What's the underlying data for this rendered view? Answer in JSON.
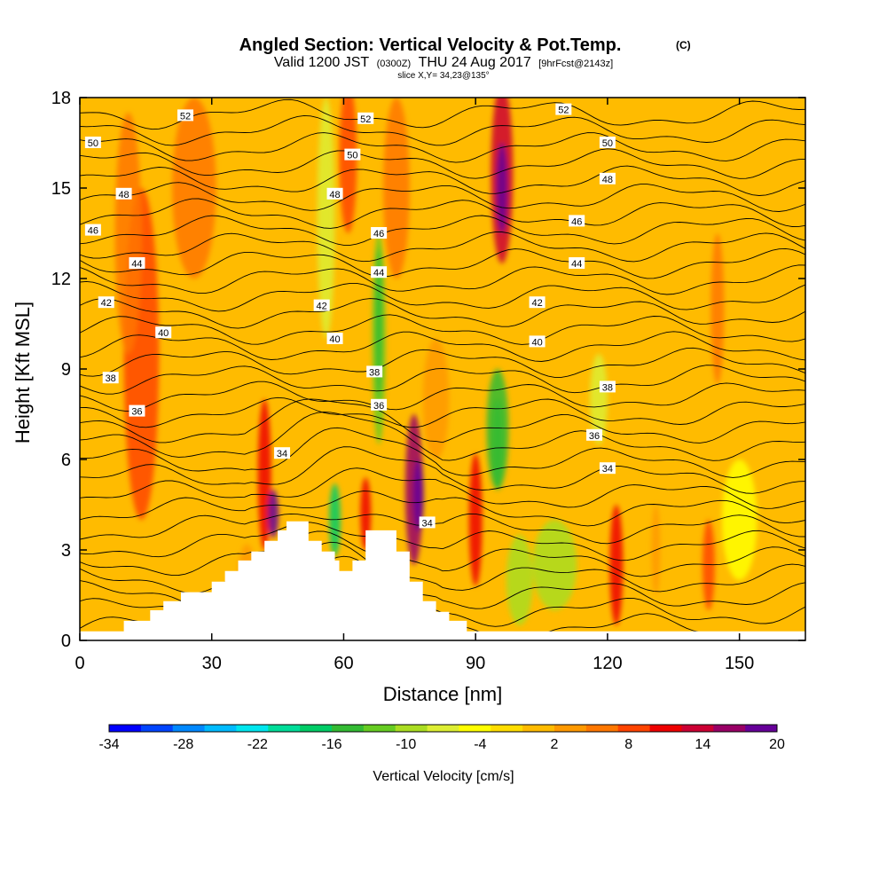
{
  "title": {
    "main": "Angled Section: Vertical Velocity & Pot.Temp.",
    "main_suffix": "(C)",
    "valid_prefix": "Valid 1200 JST",
    "valid_utc": "(0300Z)",
    "valid_date": "THU 24 Aug 2017",
    "forecast": "[9hrFcst@2143z]",
    "slice": "slice X,Y= 34,23@135°"
  },
  "chart_data": {
    "type": "heatmap",
    "xlabel": "Distance [nm]",
    "ylabel": "Height [Kft MSL]",
    "xlim": [
      0,
      165
    ],
    "ylim": [
      0,
      18
    ],
    "x_ticks": [
      "0",
      "30",
      "60",
      "90",
      "120",
      "150"
    ],
    "y_ticks": [
      "0",
      "3",
      "6",
      "9",
      "12",
      "15",
      "18"
    ],
    "x_tick_values": [
      0,
      30,
      60,
      90,
      120,
      150
    ],
    "y_tick_values": [
      0,
      3,
      6,
      9,
      12,
      15,
      18
    ],
    "colorbar": {
      "title": "Vertical Velocity [cm/s]",
      "range": [
        -34,
        20
      ],
      "tick_labels": [
        "-34",
        "-28",
        "-22",
        "-16",
        "-10",
        "-4",
        "2",
        "8",
        "14",
        "20"
      ],
      "colors": [
        "#0000ff",
        "#0044ff",
        "#0088ff",
        "#00bbff",
        "#00e6ee",
        "#00dd99",
        "#00cc66",
        "#33bb33",
        "#66cc22",
        "#aadd22",
        "#ddee33",
        "#ffff00",
        "#ffdd00",
        "#ffbb00",
        "#ff9900",
        "#ff7700",
        "#ff4400",
        "#ee0000",
        "#cc0033",
        "#990066",
        "#660099"
      ]
    },
    "contour_labels": [
      {
        "text": "52",
        "x": 24,
        "y": 17.4
      },
      {
        "text": "52",
        "x": 65,
        "y": 17.3
      },
      {
        "text": "52",
        "x": 110,
        "y": 17.6
      },
      {
        "text": "50",
        "x": 3,
        "y": 16.5
      },
      {
        "text": "50",
        "x": 62,
        "y": 16.1
      },
      {
        "text": "50",
        "x": 120,
        "y": 16.5
      },
      {
        "text": "48",
        "x": 10,
        "y": 14.8
      },
      {
        "text": "48",
        "x": 58,
        "y": 14.8
      },
      {
        "text": "48",
        "x": 120,
        "y": 15.3
      },
      {
        "text": "46",
        "x": 3,
        "y": 13.6
      },
      {
        "text": "46",
        "x": 68,
        "y": 13.5
      },
      {
        "text": "46",
        "x": 113,
        "y": 13.9
      },
      {
        "text": "44",
        "x": 13,
        "y": 12.5
      },
      {
        "text": "44",
        "x": 68,
        "y": 12.2
      },
      {
        "text": "44",
        "x": 113,
        "y": 12.5
      },
      {
        "text": "42",
        "x": 6,
        "y": 11.2
      },
      {
        "text": "42",
        "x": 55,
        "y": 11.1
      },
      {
        "text": "42",
        "x": 104,
        "y": 11.2
      },
      {
        "text": "40",
        "x": 19,
        "y": 10.2
      },
      {
        "text": "40",
        "x": 58,
        "y": 10.0
      },
      {
        "text": "40",
        "x": 104,
        "y": 9.9
      },
      {
        "text": "38",
        "x": 7,
        "y": 8.7
      },
      {
        "text": "38",
        "x": 67,
        "y": 8.9
      },
      {
        "text": "38",
        "x": 120,
        "y": 8.4
      },
      {
        "text": "36",
        "x": 13,
        "y": 7.6
      },
      {
        "text": "36",
        "x": 68,
        "y": 7.8
      },
      {
        "text": "36",
        "x": 117,
        "y": 6.8
      },
      {
        "text": "34",
        "x": 46,
        "y": 6.2
      },
      {
        "text": "34",
        "x": 79,
        "y": 3.9
      },
      {
        "text": "34",
        "x": 120,
        "y": 5.7
      }
    ]
  }
}
